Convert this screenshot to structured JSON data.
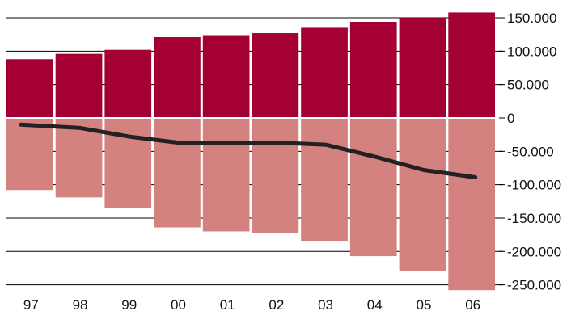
{
  "chart_data": {
    "type": "bar",
    "categories": [
      "97",
      "98",
      "99",
      "00",
      "01",
      "02",
      "03",
      "04",
      "05",
      "06"
    ],
    "series": [
      {
        "values": [
          88000,
          96000,
          102000,
          121000,
          124000,
          127000,
          135000,
          144000,
          150000,
          158000
        ]
      },
      {
        "values": [
          -108000,
          -119000,
          -135000,
          -164000,
          -170000,
          -173000,
          -184000,
          -207000,
          -229000,
          -258000
        ]
      },
      {
        "type": "line",
        "values": [
          -10000,
          -15000,
          -28000,
          -37000,
          -37000,
          -37000,
          -40000,
          -58000,
          -78000,
          -89000
        ]
      }
    ],
    "ylim": [
      -260000,
      160000
    ],
    "yticks": [
      150000,
      100000,
      50000,
      0,
      -50000,
      -100000,
      -150000,
      -200000,
      -250000
    ],
    "ytick_labels": [
      "150.000",
      "100.000",
      "50.000",
      "0",
      "-50.000",
      "-100.000",
      "-150.000",
      "-200.000",
      "-250.000"
    ],
    "grid": true,
    "colors": {
      "positive": "#a50034",
      "negative": "#d4827f",
      "line": "#222222",
      "grid": "#000000"
    }
  }
}
